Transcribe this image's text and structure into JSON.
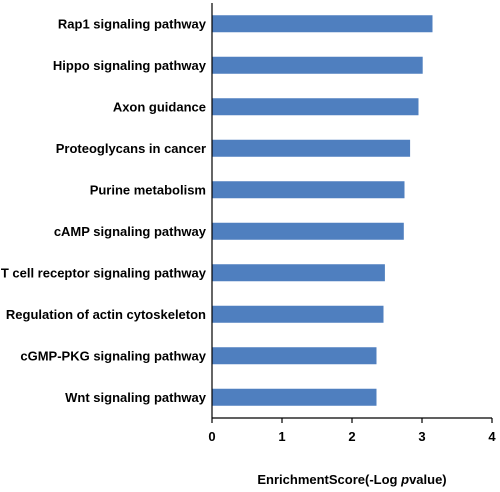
{
  "chart_data": {
    "type": "bar",
    "orientation": "horizontal",
    "categories": [
      "Rap1 signaling pathway",
      "Hippo signaling pathway",
      "Axon guidance",
      "Proteoglycans in cancer",
      "Purine metabolism",
      "cAMP signaling pathway",
      "T cell receptor signaling pathway",
      "Regulation of actin cytoskeleton",
      "cGMP-PKG signaling pathway",
      "Wnt signaling pathway"
    ],
    "values": [
      3.15,
      3.01,
      2.95,
      2.83,
      2.75,
      2.74,
      2.47,
      2.45,
      2.35,
      2.35
    ],
    "xlabel_main": "EnrichmentScore(-Log ",
    "xlabel_italic": "p",
    "xlabel_tail": "value)",
    "xlim": [
      0,
      4
    ],
    "xticks": [
      "0",
      "1",
      "2",
      "3",
      "4"
    ],
    "bar_color": "#4f7fbf",
    "grid": false,
    "legend": "none"
  }
}
